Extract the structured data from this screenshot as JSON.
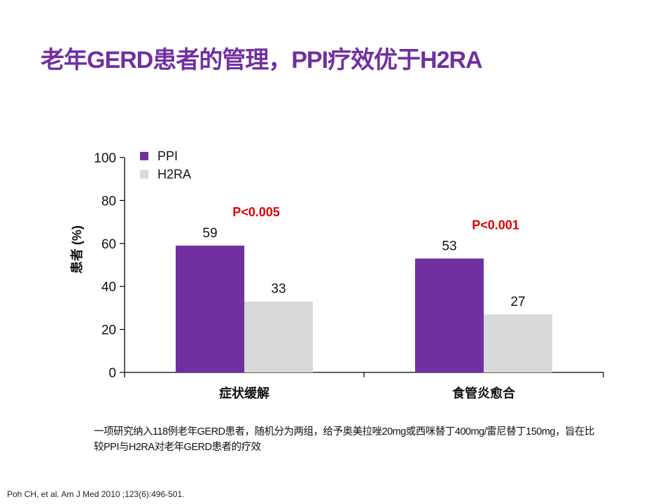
{
  "title": "老年GERD患者的管理，PPI疗效优于H2RA",
  "chart_data": {
    "type": "bar",
    "title": "",
    "xlabel": "",
    "ylabel": "患者 (%)",
    "ylim": [
      0,
      100
    ],
    "yticks": [
      0,
      20,
      40,
      60,
      80,
      100
    ],
    "categories": [
      "症状缓解",
      "食管炎愈合"
    ],
    "series": [
      {
        "name": "PPI",
        "color": "#7030a0",
        "values": [
          59,
          53
        ]
      },
      {
        "name": "H2RA",
        "color": "#d9d9d9",
        "values": [
          33,
          27
        ]
      }
    ],
    "annotations": [
      "P<0.005",
      "P<0.001"
    ],
    "annotation_color": "#e00000",
    "legend_position": "top-left",
    "grid": false
  },
  "footnote": "一项研究纳入118例老年GERD患者，随机分为两组，给予奥美拉唑20mg或西咪替丁400mg/雷尼替丁150mg，旨在比较PPI与H2RA对老年GERD患者的疗效",
  "reference": "Poh CH, et al. Am J Med 2010 ;123(6):496-501."
}
